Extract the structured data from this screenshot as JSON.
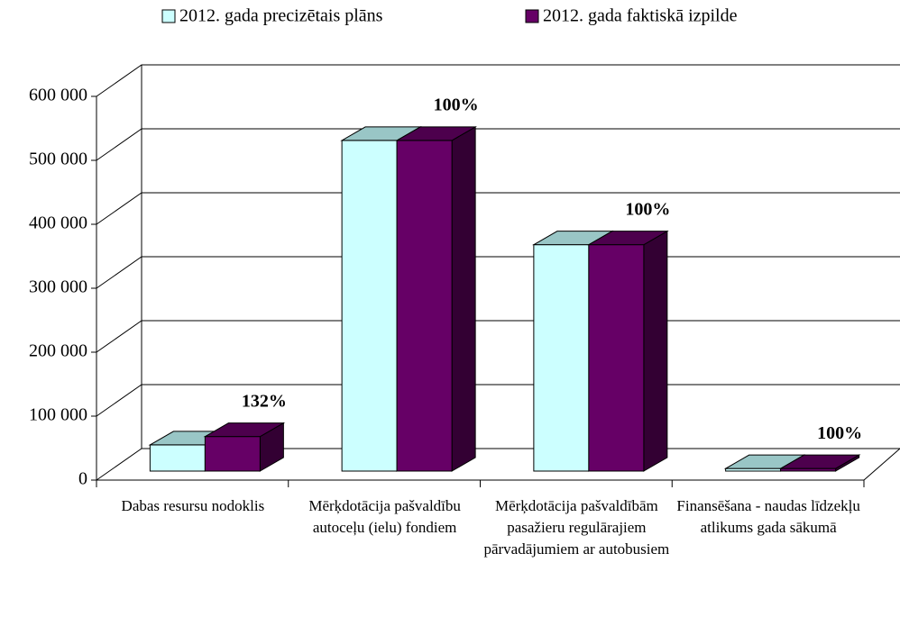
{
  "chart_data": {
    "type": "bar3d",
    "categories": [
      "Dabas resursu nodoklis",
      "Mērķdotācija pašvaldību autoceļu (ielu) fondiem",
      "Mērķdotācija pašvaldībām pasažieru regulārajiem pārvadājumiem ar autobusiem",
      "Finansēšana - naudas līdzekļu atlikums gada sākumā"
    ],
    "series": [
      {
        "name": "2012. gada precizētais plāns",
        "color": "#ccffff",
        "values": [
          41000,
          517000,
          354000,
          4000
        ]
      },
      {
        "name": "2012. gada faktiskā izpilde",
        "color": "#660066",
        "values": [
          54000,
          517000,
          354000,
          4000
        ]
      }
    ],
    "annotations": [
      "132%",
      "100%",
      "100%",
      "100%"
    ],
    "ylim": [
      0,
      600000
    ],
    "yticks": [
      {
        "value": 0,
        "label": "0"
      },
      {
        "value": 100000,
        "label": "100 000"
      },
      {
        "value": 200000,
        "label": "200 000"
      },
      {
        "value": 300000,
        "label": "300 000"
      },
      {
        "value": 400000,
        "label": "400 000"
      },
      {
        "value": 500000,
        "label": "500 000"
      },
      {
        "value": 600000,
        "label": "600 000"
      }
    ],
    "grid": true,
    "legend": "top"
  }
}
